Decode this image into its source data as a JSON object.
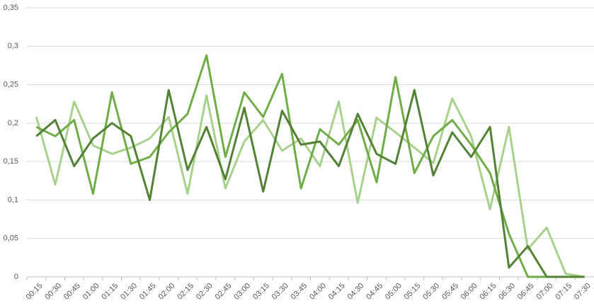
{
  "chart_data": {
    "type": "line",
    "categories": [
      "00:15",
      "00:30",
      "00:45",
      "01:00",
      "01:15",
      "01:30",
      "01:45",
      "02:00",
      "02:15",
      "02:30",
      "02:45",
      "03:00",
      "03:15",
      "03:30",
      "03:45",
      "04:00",
      "04:15",
      "04:30",
      "04:45",
      "05:00",
      "05:15",
      "05:30",
      "05:45",
      "06:00",
      "06:15",
      "06:30",
      "06:45",
      "07:00",
      "07:15",
      "07:30"
    ],
    "series": [
      {
        "color": "#548235",
        "values": [
          0.183,
          0.204,
          0.144,
          0.18,
          0.2,
          0.183,
          0.1,
          0.243,
          0.139,
          0.195,
          0.127,
          0.22,
          0.111,
          0.216,
          0.172,
          0.176,
          0.144,
          0.212,
          0.16,
          0.147,
          0.243,
          0.132,
          0.188,
          0.156,
          0.195,
          0.012,
          0.04,
          0,
          0,
          0
        ]
      },
      {
        "color": "#70ad47",
        "values": [
          0.195,
          0.183,
          0.204,
          0.108,
          0.24,
          0.147,
          0.156,
          0.188,
          0.212,
          0.288,
          0.156,
          0.24,
          0.208,
          0.264,
          0.115,
          0.192,
          0.172,
          0.204,
          0.123,
          0.26,
          0.135,
          0.183,
          0.204,
          0.172,
          0.135,
          0.056,
          0,
          0,
          0,
          0
        ]
      },
      {
        "color": "#a9d18e",
        "values": [
          0.208,
          0.12,
          0.228,
          0.171,
          0.16,
          0.168,
          0.18,
          0.208,
          0.108,
          0.236,
          0.115,
          0.176,
          0.204,
          0.164,
          0.18,
          0.144,
          0.228,
          0.096,
          0.207,
          0.188,
          0.168,
          0.148,
          0.232,
          0.183,
          0.088,
          0.195,
          0.036,
          0.064,
          0.004,
          0
        ]
      }
    ],
    "ylim": [
      0,
      0.35
    ],
    "yticks": [
      0,
      {
        "value": 0.05,
        "label": "0,05"
      },
      {
        "value": 0.1,
        "label": "0,1"
      },
      {
        "value": 0.15,
        "label": "0,15"
      },
      {
        "value": 0.2,
        "label": "0,2"
      },
      {
        "value": 0.25,
        "label": "0,25"
      },
      {
        "value": 0.3,
        "label": "0,3"
      },
      {
        "value": 0.35,
        "label": "0,35"
      }
    ],
    "grid": true
  }
}
